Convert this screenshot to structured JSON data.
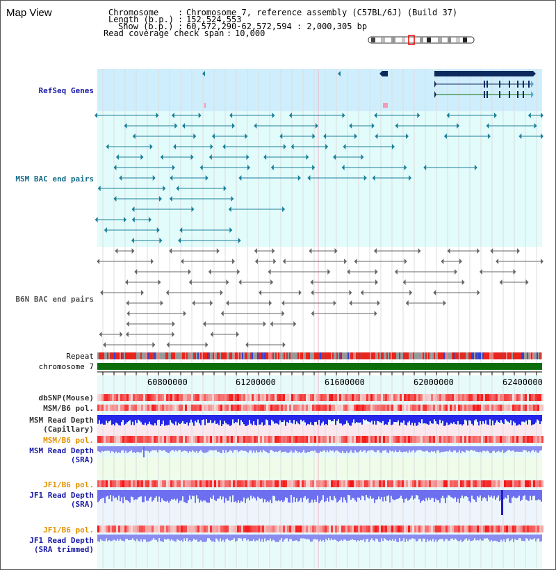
{
  "title": "Map View",
  "header": {
    "chromosome_key": "Chromosome",
    "chromosome_val": "Chromosome 7, reference assembly (C57BL/6J) (Build 37)",
    "length_key": "Length (b.p.)",
    "length_val": "152,524,553",
    "show_key": "Show (b.p.)",
    "show_val": "60,572,290-62,572,594 : 2,000,305 bp",
    "coverage_key": "Read coverage check span",
    "coverage_val": "10,000"
  },
  "tracks": {
    "refseq": "RefSeq Genes",
    "msm_bac": "MSM BAC end pairs",
    "b6n_bac": "B6N BAC end pairs",
    "repeat": "Repeat",
    "chrom": "chromosome 7",
    "dbsnp": "dbSNP(Mouse)",
    "msm_pol1": "MSM/B6 pol.",
    "msm_depth_cap_1": "MSM Read Depth",
    "msm_depth_cap_2": "(Capillary)",
    "msm_pol2": "MSM/B6 pol.",
    "msm_depth_sra_1": "MSM Read Depth",
    "msm_depth_sra_2": "(SRA)",
    "jf1_pol1": "JF1/B6 pol.",
    "jf1_depth_sra_1": "JF1 Read Depth",
    "jf1_depth_sra_2": "(SRA)",
    "jf1_pol2": "JF1/B6 pol.",
    "jf1_depth_trim_1": "JF1 Read Depth",
    "jf1_depth_trim_2": "(SRA trimmed)"
  },
  "axis": {
    "ticks": [
      "60800000",
      "61200000",
      "61600000",
      "62000000",
      "62400000"
    ]
  },
  "colors": {
    "refseq_bg": "#cfeefd",
    "msm_bg": "#e2fbfb",
    "b6n_bg": "#ffffff",
    "chrom_green": "#0b6e0b",
    "gene_navy": "#0d2a5e",
    "msm_feature": "#1a7f9a",
    "b6n_feature": "#666666",
    "depth_blue": "#2626e8",
    "depth_light": "#8a8cf0"
  }
}
